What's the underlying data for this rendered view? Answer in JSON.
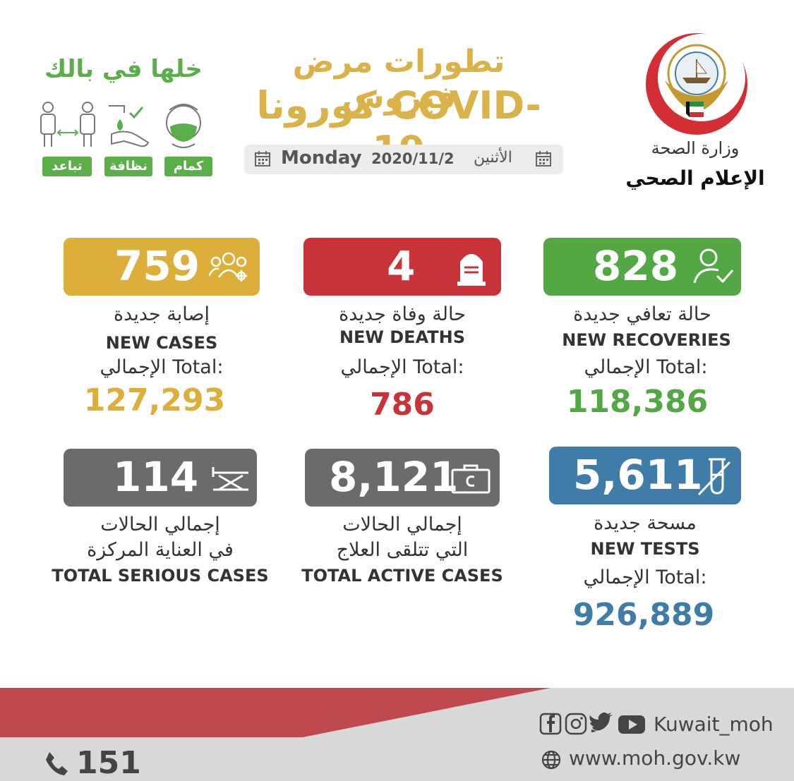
{
  "header": {
    "title_line1": "تطورات مرض فيروس",
    "title_line2": "كورونا COVID-19",
    "date": {
      "day_en": "Monday",
      "value": "2020/11/2",
      "day_ar": "الأثنين"
    }
  },
  "awareness": {
    "slogan": "خلها في بالك",
    "tags": {
      "mask": "كمام",
      "hygiene": "نظافة",
      "distance": "تباعد"
    }
  },
  "ministry": {
    "name": "وزارة الصحة",
    "department": "الإعلام الصحي"
  },
  "stats": {
    "recoveries": {
      "value": "828",
      "label_ar": "حالة تعافي جديدة",
      "label_en": "NEW RECOVERIES",
      "total_label": "الإجمالي Total:",
      "total": "118,386",
      "color": "#53a845"
    },
    "deaths": {
      "value": "4",
      "label_ar": "حالة وفاة جديدة",
      "label_en": "NEW DEATHS",
      "total_label": "الإجمالي Total:",
      "total": "786",
      "color": "#c8333a"
    },
    "cases": {
      "value": "759",
      "label_ar": "إصابة جديدة",
      "label_en": "NEW CASES",
      "total_label": "الإجمالي Total:",
      "total": "127,293",
      "color": "#dcaf3a"
    },
    "tests": {
      "value": "5,611",
      "label_ar": "مسحة جديدة",
      "label_en": "NEW TESTS",
      "total_label": "الإجمالي Total:",
      "total": "926,889",
      "color": "#3f7da8"
    },
    "active": {
      "value": "8,121",
      "label_ar1": "إجمالي الحالات",
      "label_ar2": "التي تتلقى العلاج",
      "label_en": "TOTAL ACTIVE CASES"
    },
    "serious": {
      "value": "114",
      "label_ar1": "إجمالي الحالات",
      "label_ar2": "في العناية المركزة",
      "label_en": "TOTAL SERIOUS CASES"
    }
  },
  "footer": {
    "handle": "Kuwait_moh",
    "website": "www.moh.gov.kw",
    "phone": "151"
  }
}
